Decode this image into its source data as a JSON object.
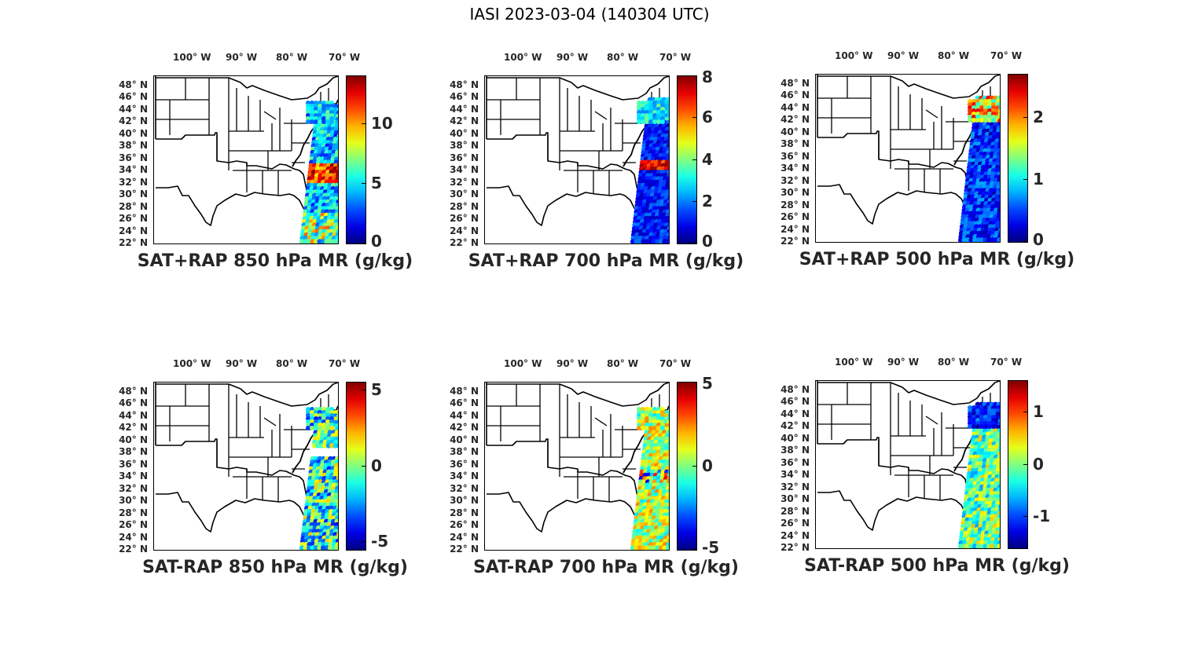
{
  "figure": {
    "title": "IASI 2023-03-04 (140304 UTC)"
  },
  "axes": {
    "lon_labels": [
      "100° W",
      "90° W",
      "80° W",
      "70° W"
    ],
    "lat_labels": [
      "48° N",
      "46° N",
      "44° N",
      "42° N",
      "40° N",
      "38° N",
      "36° N",
      "34° N",
      "32° N",
      "30° N",
      "28° N",
      "26° N",
      "24° N",
      "22° N"
    ]
  },
  "colormap": "jet",
  "panels": [
    {
      "id": "p1",
      "title": "SAT+RAP 850 hPa MR (g/kg)",
      "cbar_range": [
        0,
        14
      ],
      "cbar_ticks": [
        "0",
        "5",
        "10"
      ],
      "cbar_tick_values": [
        0,
        5,
        10
      ]
    },
    {
      "id": "p2",
      "title": "SAT+RAP 700 hPa MR (g/kg)",
      "cbar_range": [
        0,
        8
      ],
      "cbar_ticks": [
        "0",
        "2",
        "4",
        "6",
        "8"
      ],
      "cbar_tick_values": [
        0,
        2,
        4,
        6,
        8
      ]
    },
    {
      "id": "p3",
      "title": "SAT+RAP 500 hPa MR (g/kg)",
      "cbar_range": [
        0,
        2.7
      ],
      "cbar_ticks": [
        "0",
        "1",
        "2"
      ],
      "cbar_tick_values": [
        0,
        1,
        2
      ]
    },
    {
      "id": "p4",
      "title": "SAT-RAP 850 hPa MR (g/kg)",
      "cbar_range": [
        -5.5,
        5.5
      ],
      "cbar_ticks": [
        "-5",
        "0",
        "5"
      ],
      "cbar_tick_values": [
        -5,
        0,
        5
      ]
    },
    {
      "id": "p5",
      "title": "SAT-RAP 700 hPa MR (g/kg)",
      "cbar_range": [
        -5,
        5
      ],
      "cbar_ticks": [
        "-5",
        "0",
        "5"
      ],
      "cbar_tick_values": [
        -5,
        0,
        5
      ]
    },
    {
      "id": "p6",
      "title": "SAT-RAP 500 hPa MR (g/kg)",
      "cbar_range": [
        -1.6,
        1.6
      ],
      "cbar_ticks": [
        "-1",
        "0",
        "1"
      ],
      "cbar_tick_values": [
        -1,
        0,
        1
      ]
    }
  ]
}
